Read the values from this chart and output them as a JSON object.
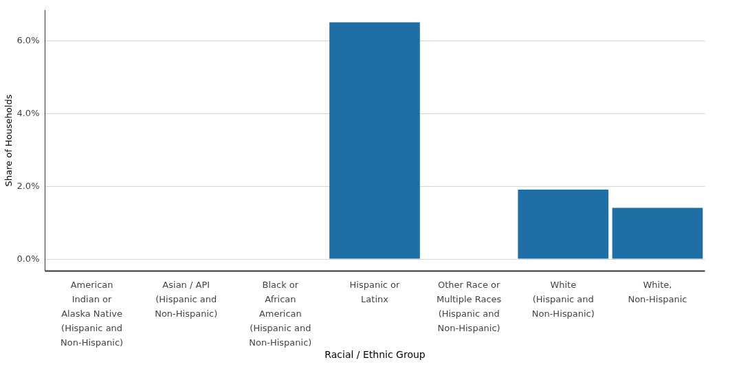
{
  "chart_data": {
    "type": "bar",
    "xlabel": "Racial / Ethnic Group",
    "ylabel": "Share of Households",
    "categories": [
      "American Indian or Alaska Native (Hispanic and Non-Hispanic)",
      "Asian / API (Hispanic and Non-Hispanic)",
      "Black or African American (Hispanic and Non-Hispanic)",
      "Hispanic or Latinx",
      "Other Race or Multiple Races (Hispanic and Non-Hispanic)",
      "White (Hispanic and Non-Hispanic)",
      "White, Non-Hispanic"
    ],
    "values": [
      0,
      0,
      0,
      6.5,
      0,
      1.9,
      1.4
    ],
    "color": "#1f6ea6",
    "ylim": [
      -0.33,
      6.85
    ],
    "yticks": [
      {
        "value": 0,
        "label": "0.0%"
      },
      {
        "value": 2,
        "label": "2.0%"
      },
      {
        "value": 4,
        "label": "4.0%"
      },
      {
        "value": 6,
        "label": "6.0%"
      }
    ],
    "grid": "y"
  }
}
